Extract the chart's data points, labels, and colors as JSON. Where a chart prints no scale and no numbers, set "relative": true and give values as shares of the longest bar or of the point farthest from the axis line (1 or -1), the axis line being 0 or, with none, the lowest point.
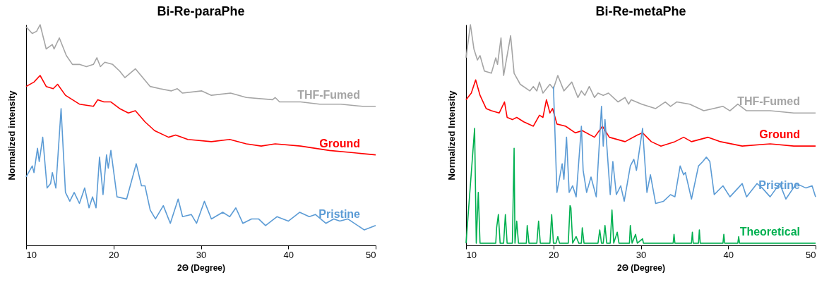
{
  "chart_data": [
    {
      "type": "line",
      "relative": true,
      "title": "Bi-Re-paraPhe",
      "xlabel": "2Θ (Degree)",
      "ylabel": "Normalized intensity",
      "xlim": [
        10,
        50
      ],
      "xticks": [
        10,
        20,
        30,
        40,
        50
      ],
      "grid": false,
      "legend": false,
      "tick_labels": "x",
      "series": [
        {
          "name": "THF-Fumed",
          "color": "#a5a5a5",
          "x": [
            10.0,
            10.7,
            11.2,
            11.6,
            12.3,
            13.0,
            13.2,
            13.8,
            14.6,
            15.3,
            16.1,
            16.9,
            17.7,
            18.1,
            18.5,
            19.0,
            19.9,
            20.7,
            21.3,
            22.5,
            24.2,
            25.3,
            26.6,
            27.3,
            27.9,
            30.1,
            31.2,
            33.4,
            35.2,
            38.2,
            38.5,
            39.0,
            41.4,
            43.6,
            46.0,
            48.5,
            50.0
          ],
          "values": [
            0.99,
            0.96,
            0.97,
            1.0,
            0.89,
            0.91,
            0.89,
            0.94,
            0.86,
            0.82,
            0.82,
            0.81,
            0.82,
            0.85,
            0.81,
            0.83,
            0.82,
            0.79,
            0.76,
            0.8,
            0.72,
            0.71,
            0.7,
            0.71,
            0.69,
            0.7,
            0.68,
            0.69,
            0.67,
            0.66,
            0.67,
            0.65,
            0.65,
            0.64,
            0.64,
            0.63,
            0.63
          ]
        },
        {
          "name": "Ground",
          "color": "#ff0000",
          "x": [
            10.0,
            10.9,
            11.6,
            12.3,
            13.1,
            13.6,
            14.5,
            16.1,
            17.7,
            18.2,
            18.9,
            19.7,
            20.7,
            21.7,
            22.5,
            23.6,
            24.7,
            26.3,
            27.1,
            28.5,
            31.2,
            33.3,
            35.2,
            36.9,
            38.5,
            41.4,
            44.7,
            47.4,
            50.0
          ],
          "values": [
            0.72,
            0.74,
            0.77,
            0.72,
            0.71,
            0.73,
            0.68,
            0.64,
            0.63,
            0.66,
            0.65,
            0.65,
            0.62,
            0.6,
            0.61,
            0.56,
            0.52,
            0.49,
            0.5,
            0.48,
            0.47,
            0.48,
            0.46,
            0.45,
            0.46,
            0.45,
            0.43,
            0.42,
            0.41
          ]
        },
        {
          "name": "Pristine",
          "color": "#5b9bd5",
          "x": [
            10.0,
            10.7,
            10.9,
            11.3,
            11.5,
            11.9,
            12.4,
            12.8,
            13.0,
            13.4,
            14.0,
            14.5,
            15.0,
            15.5,
            16.1,
            16.7,
            17.2,
            17.6,
            18.0,
            18.4,
            18.8,
            19.2,
            19.4,
            19.7,
            20.4,
            21.5,
            22.6,
            23.2,
            23.6,
            24.2,
            24.8,
            25.7,
            26.5,
            27.4,
            27.9,
            28.9,
            29.5,
            30.4,
            31.2,
            32.5,
            33.3,
            34.0,
            34.8,
            35.8,
            36.6,
            37.4,
            38.7,
            40.0,
            41.3,
            42.4,
            43.1,
            44.3,
            45.2,
            45.9,
            46.8,
            48.7,
            50.0
          ],
          "values": [
            0.31,
            0.36,
            0.33,
            0.44,
            0.38,
            0.49,
            0.26,
            0.28,
            0.33,
            0.26,
            0.62,
            0.24,
            0.2,
            0.24,
            0.19,
            0.26,
            0.17,
            0.22,
            0.17,
            0.4,
            0.23,
            0.41,
            0.35,
            0.43,
            0.22,
            0.21,
            0.37,
            0.27,
            0.27,
            0.16,
            0.12,
            0.18,
            0.1,
            0.21,
            0.13,
            0.14,
            0.1,
            0.2,
            0.12,
            0.15,
            0.13,
            0.17,
            0.1,
            0.12,
            0.12,
            0.09,
            0.13,
            0.11,
            0.15,
            0.13,
            0.14,
            0.1,
            0.12,
            0.11,
            0.12,
            0.07,
            0.09
          ]
        }
      ]
    },
    {
      "type": "line",
      "relative": true,
      "title": "Bi-Re-metaPhe",
      "xlabel": "2Θ (Degree)",
      "ylabel": "Normalized Intensity",
      "xlim": [
        10,
        50
      ],
      "xticks": [
        10,
        20,
        30,
        40,
        50
      ],
      "grid": false,
      "legend": false,
      "tick_labels": "x",
      "series": [
        {
          "name": "THF-Fumed",
          "color": "#a5a5a5",
          "x": [
            10.0,
            10.5,
            10.9,
            11.3,
            11.6,
            12.1,
            12.9,
            13.4,
            13.6,
            14.0,
            14.3,
            15.1,
            15.5,
            16.2,
            17.3,
            17.7,
            18.1,
            18.4,
            18.8,
            19.6,
            20.0,
            20.5,
            21.2,
            22.1,
            22.8,
            23.2,
            23.6,
            24.1,
            24.7,
            25.1,
            25.7,
            26.3,
            27.4,
            28.2,
            28.6,
            28.9,
            30.1,
            31.7,
            32.8,
            33.4,
            34.1,
            35.6,
            37.2,
            38.3,
            39.4,
            40.2,
            41.1,
            42.1,
            44.8,
            47.5,
            50.0
          ],
          "values": [
            0.85,
            1.0,
            0.89,
            0.84,
            0.86,
            0.79,
            0.78,
            0.85,
            0.82,
            0.94,
            0.77,
            0.95,
            0.78,
            0.73,
            0.7,
            0.72,
            0.7,
            0.74,
            0.69,
            0.73,
            0.71,
            0.77,
            0.7,
            0.74,
            0.67,
            0.7,
            0.68,
            0.72,
            0.67,
            0.69,
            0.68,
            0.69,
            0.65,
            0.67,
            0.64,
            0.66,
            0.64,
            0.62,
            0.65,
            0.63,
            0.65,
            0.64,
            0.61,
            0.62,
            0.63,
            0.61,
            0.64,
            0.61,
            0.61,
            0.6,
            0.6
          ]
        },
        {
          "name": "Ground",
          "color": "#ff0000",
          "x": [
            10.0,
            10.6,
            11.1,
            11.6,
            12.3,
            12.9,
            13.8,
            14.4,
            14.7,
            15.3,
            15.8,
            16.6,
            17.7,
            18.4,
            18.8,
            19.2,
            19.6,
            19.9,
            20.4,
            21.4,
            22.5,
            23.3,
            24.7,
            25.6,
            26.4,
            28.2,
            29.6,
            30.2,
            31.2,
            32.3,
            33.9,
            34.9,
            35.8,
            37.7,
            39.1,
            41.6,
            44.8,
            47.5,
            50.0
          ],
          "values": [
            0.66,
            0.69,
            0.75,
            0.68,
            0.62,
            0.61,
            0.6,
            0.65,
            0.58,
            0.57,
            0.58,
            0.56,
            0.54,
            0.59,
            0.58,
            0.66,
            0.6,
            0.62,
            0.55,
            0.54,
            0.51,
            0.52,
            0.49,
            0.54,
            0.49,
            0.47,
            0.5,
            0.51,
            0.47,
            0.45,
            0.47,
            0.49,
            0.47,
            0.49,
            0.47,
            0.45,
            0.46,
            0.45,
            0.45
          ]
        },
        {
          "name": "Pristine",
          "color": "#5b9bd5",
          "x": [
            20.0,
            20.4,
            21.0,
            21.2,
            21.5,
            21.8,
            22.2,
            22.6,
            23.2,
            23.4,
            23.8,
            24.3,
            24.9,
            25.5,
            25.7,
            25.9,
            26.5,
            26.8,
            27.2,
            27.7,
            28.1,
            28.8,
            29.2,
            29.5,
            30.2,
            30.7,
            31.1,
            31.7,
            32.6,
            33.4,
            33.9,
            34.5,
            34.9,
            35.1,
            35.8,
            36.6,
            37.1,
            37.5,
            37.9,
            38.4,
            39.4,
            40.2,
            41.6,
            42.1,
            43.3,
            43.9,
            44.8,
            45.9,
            46.6,
            47.8,
            48.9,
            49.6,
            50.0
          ],
          "values": [
            0.72,
            0.24,
            0.37,
            0.3,
            0.49,
            0.24,
            0.27,
            0.22,
            0.54,
            0.34,
            0.24,
            0.31,
            0.22,
            0.63,
            0.45,
            0.57,
            0.23,
            0.38,
            0.23,
            0.27,
            0.2,
            0.36,
            0.39,
            0.34,
            0.53,
            0.24,
            0.32,
            0.19,
            0.2,
            0.23,
            0.22,
            0.36,
            0.32,
            0.33,
            0.21,
            0.36,
            0.38,
            0.4,
            0.38,
            0.23,
            0.27,
            0.22,
            0.28,
            0.22,
            0.28,
            0.26,
            0.22,
            0.28,
            0.21,
            0.28,
            0.26,
            0.27,
            0.22
          ]
        },
        {
          "name": "Theoretical",
          "color": "#00b050",
          "x": [
            10.0,
            10.98,
            11.17,
            11.4,
            11.6,
            11.8,
            12.0,
            13.4,
            13.5,
            13.7,
            13.9,
            14.3,
            14.5,
            14.7,
            15.3,
            15.5,
            15.6,
            15.8,
            16.0,
            16.9,
            17.0,
            17.2,
            18.1,
            18.3,
            18.5,
            19.6,
            19.8,
            20.0,
            20.3,
            20.5,
            20.7,
            21.7,
            21.9,
            22.0,
            22.2,
            22.6,
            22.9,
            23.2,
            23.3,
            23.5,
            25.1,
            25.3,
            25.5,
            25.7,
            25.9,
            26.1,
            26.5,
            26.7,
            26.9,
            27.3,
            27.5,
            28.7,
            28.8,
            29.0,
            29.4,
            29.6,
            30.2,
            30.3,
            33.7,
            33.8,
            33.9,
            35.8,
            35.9,
            36.0,
            36.6,
            36.7,
            36.8,
            39.4,
            39.5,
            39.6,
            41.1,
            41.2,
            41.3,
            50.0
          ],
          "values": [
            0.01,
            0.53,
            0.01,
            0.24,
            0.01,
            0.01,
            0.01,
            0.01,
            0.08,
            0.14,
            0.01,
            0.01,
            0.14,
            0.01,
            0.01,
            0.44,
            0.01,
            0.11,
            0.01,
            0.01,
            0.09,
            0.01,
            0.01,
            0.11,
            0.01,
            0.01,
            0.14,
            0.01,
            0.01,
            0.04,
            0.01,
            0.01,
            0.18,
            0.17,
            0.01,
            0.04,
            0.01,
            0.01,
            0.08,
            0.01,
            0.01,
            0.07,
            0.01,
            0.01,
            0.09,
            0.01,
            0.01,
            0.16,
            0.01,
            0.06,
            0.01,
            0.01,
            0.09,
            0.01,
            0.05,
            0.01,
            0.03,
            0.01,
            0.01,
            0.05,
            0.01,
            0.01,
            0.06,
            0.01,
            0.01,
            0.07,
            0.01,
            0.01,
            0.05,
            0.01,
            0.01,
            0.04,
            0.01,
            0.01
          ]
        }
      ]
    }
  ]
}
